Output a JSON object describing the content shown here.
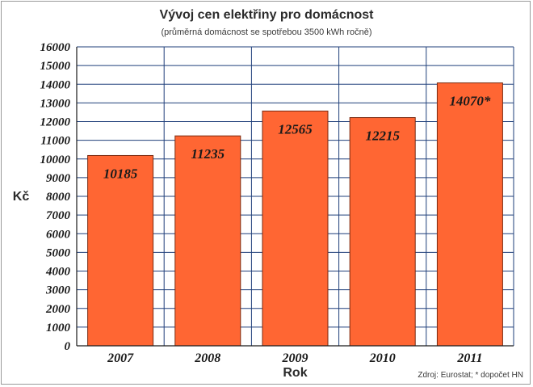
{
  "chart_data": {
    "type": "bar",
    "title": "Vývoj cen elektřiny pro domácnost",
    "subtitle": "(průměrná domácnost se spotřebou 3500 kWh ročně)",
    "xlabel": "Rok",
    "ylabel": "Kč",
    "categories": [
      "2007",
      "2008",
      "2009",
      "2010",
      "2011"
    ],
    "values": [
      10185,
      11235,
      12565,
      12215,
      14070
    ],
    "data_labels": [
      "10185",
      "11235",
      "12565",
      "12215",
      "14070*"
    ],
    "ylim": [
      0,
      16000
    ],
    "yticks": [
      0,
      1000,
      2000,
      3000,
      4000,
      5000,
      6000,
      7000,
      8000,
      9000,
      10000,
      11000,
      12000,
      13000,
      14000,
      15000,
      16000
    ],
    "grid": true,
    "source_note": "Zdroj: Eurostat; * dopočet HN",
    "colors": {
      "bar": "#ff6633",
      "bar_stroke": "#7a2a10",
      "grid": "#1f3f7a",
      "plot_bg": "#ffffff"
    }
  }
}
